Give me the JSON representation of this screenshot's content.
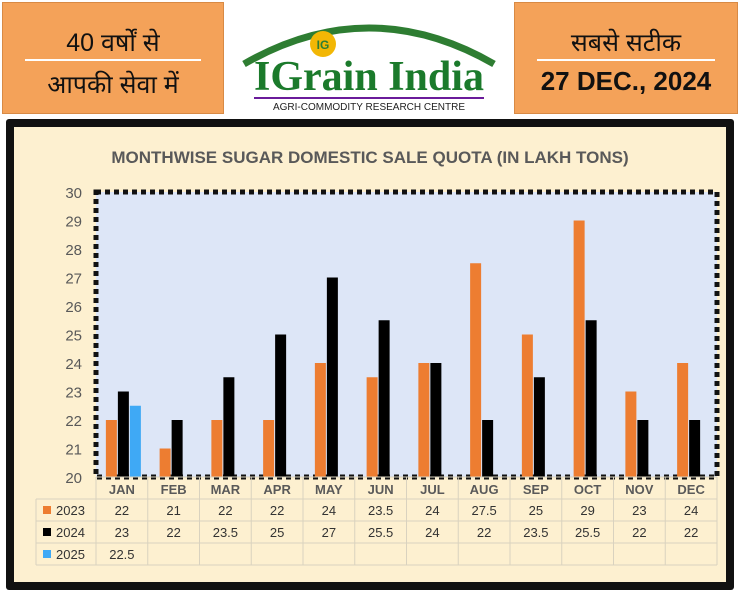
{
  "header": {
    "left_line1": "40 वर्षों से",
    "left_line2": "आपकी सेवा में",
    "right_line1": "सबसे सटीक",
    "right_date": "27 DEC., 2024",
    "logo_mark": "IG",
    "logo_name": "IGrain India",
    "logo_tagline": "AGRI-COMMODITY RESEARCH CENTRE"
  },
  "chart_data": {
    "type": "bar",
    "title": "MONTHWISE SUGAR DOMESTIC SALE QUOTA (IN LAKH TONS)",
    "categories": [
      "JAN",
      "FEB",
      "MAR",
      "APR",
      "MAY",
      "JUN",
      "JUL",
      "AUG",
      "SEP",
      "OCT",
      "NOV",
      "DEC"
    ],
    "series": [
      {
        "name": "2023",
        "color": "#ed7d31",
        "values": [
          22,
          21,
          22,
          22,
          24,
          23.5,
          24,
          27.5,
          25,
          29,
          23,
          24
        ]
      },
      {
        "name": "2024",
        "color": "#000000",
        "values": [
          23,
          22,
          23.5,
          25,
          27,
          25.5,
          24,
          22,
          23.5,
          25.5,
          22,
          22
        ]
      },
      {
        "name": "2025",
        "color": "#3fa9f5",
        "values": [
          22.5,
          null,
          null,
          null,
          null,
          null,
          null,
          null,
          null,
          null,
          null,
          null
        ]
      }
    ],
    "table_values": [
      [
        "22",
        "21",
        "22",
        "22",
        "24",
        "23.5",
        "24",
        "27.5",
        "25",
        "29",
        "23",
        "24"
      ],
      [
        "23",
        "22",
        "23.5",
        "25",
        "27",
        "25.5",
        "24",
        "22",
        "23.5",
        "25.5",
        "22",
        "22"
      ],
      [
        "22.5",
        "",
        "",
        "",
        "",
        "",
        "",
        "",
        "",
        "",
        "",
        ""
      ]
    ],
    "ylim": [
      20,
      30
    ],
    "yticks": [
      20,
      21,
      22,
      23,
      24,
      25,
      26,
      27,
      28,
      29,
      30
    ],
    "legend": "data table below chart",
    "grid": false,
    "plot_bg": "#dde6f7"
  }
}
